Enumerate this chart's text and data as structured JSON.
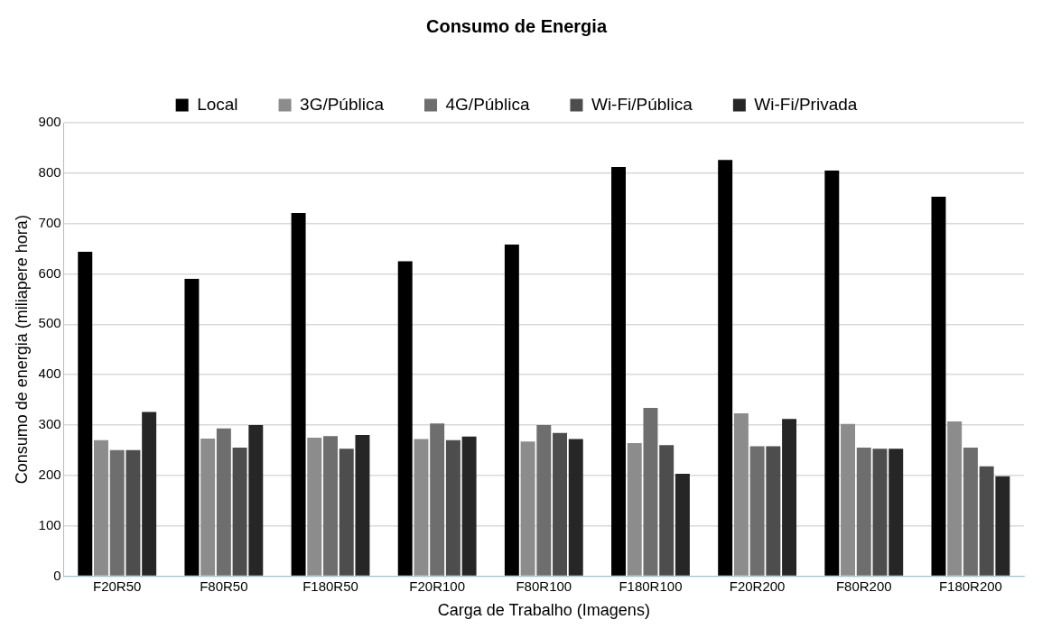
{
  "chart_data": {
    "type": "bar",
    "title": "Consumo de Energia",
    "xlabel": "Carga de Trabalho (Imagens)",
    "ylabel": "Consumo de energia (miliapere hora)",
    "categories": [
      "F20R50",
      "F80R50",
      "F180R50",
      "F20R100",
      "F80R100",
      "F180R100",
      "F20R200",
      "F80R200",
      "F180R200"
    ],
    "series": [
      {
        "name": "Local",
        "color": "#000000",
        "values": [
          644,
          590,
          721,
          625,
          658,
          812,
          826,
          805,
          753
        ]
      },
      {
        "name": "3G/Pública",
        "color": "#8c8c8c",
        "values": [
          270,
          273,
          275,
          272,
          267,
          264,
          323,
          302,
          307
        ]
      },
      {
        "name": "4G/Pública",
        "color": "#6e6e6e",
        "values": [
          250,
          293,
          278,
          303,
          300,
          334,
          258,
          255,
          255
        ]
      },
      {
        "name": "Wi-Fi/Pública",
        "color": "#4d4d4d",
        "values": [
          250,
          255,
          253,
          270,
          284,
          260,
          258,
          253,
          218
        ]
      },
      {
        "name": "Wi-Fi/Privada",
        "color": "#262626",
        "values": [
          326,
          300,
          280,
          277,
          272,
          203,
          312,
          253,
          198
        ]
      }
    ],
    "ylim": [
      0,
      900
    ],
    "yticks": [
      0,
      100,
      200,
      300,
      400,
      500,
      600,
      700,
      800,
      900
    ],
    "grid": "y",
    "legend": "top"
  }
}
